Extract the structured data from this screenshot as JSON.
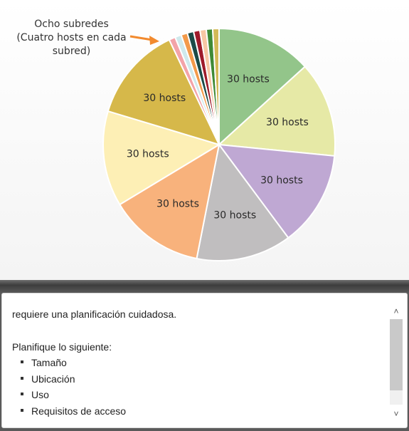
{
  "chart_data": {
    "type": "pie",
    "slices": [
      {
        "label": "30 hosts",
        "value": 30,
        "color": "#93c58a"
      },
      {
        "label": "30 hosts",
        "value": 30,
        "color": "#e6e9a6"
      },
      {
        "label": "30 hosts",
        "value": 30,
        "color": "#bfa8d3"
      },
      {
        "label": "30 hosts",
        "value": 30,
        "color": "#c0bebf"
      },
      {
        "label": "30 hosts",
        "value": 30,
        "color": "#f8b27c"
      },
      {
        "label": "30 hosts",
        "value": 30,
        "color": "#fdefb5"
      },
      {
        "label": "30 hosts",
        "value": 30,
        "color": "#d6b84a"
      },
      {
        "label": "",
        "value": 2,
        "color": "#f3a3a8"
      },
      {
        "label": "",
        "value": 2,
        "color": "#cfe9ec"
      },
      {
        "label": "",
        "value": 2,
        "color": "#f39a4a"
      },
      {
        "label": "",
        "value": 2,
        "color": "#1b4b47"
      },
      {
        "label": "",
        "value": 2,
        "color": "#9e1b2a"
      },
      {
        "label": "",
        "value": 2,
        "color": "#f7c7a4"
      },
      {
        "label": "",
        "value": 2,
        "color": "#3f8a36"
      },
      {
        "label": "",
        "value": 2,
        "color": "#d2b957"
      }
    ],
    "annotation": "Ocho subredes\n(Cuatro hosts en cada\nsubred)",
    "arrow_color": "#f28a2e"
  },
  "callout": {
    "line1": "Ocho subredes",
    "line2": "(Cuatro hosts en cada",
    "line3": "subred)"
  },
  "text_panel": {
    "intro": "requiere una planificación cuidadosa.",
    "heading": "Planifique lo siguiente:",
    "items": [
      "Tamaño",
      "Ubicación",
      "Uso",
      "Requisitos de acceso"
    ]
  },
  "scroll": {
    "up_icon": "chevron-up-icon",
    "down_icon": "chevron-down-icon"
  }
}
